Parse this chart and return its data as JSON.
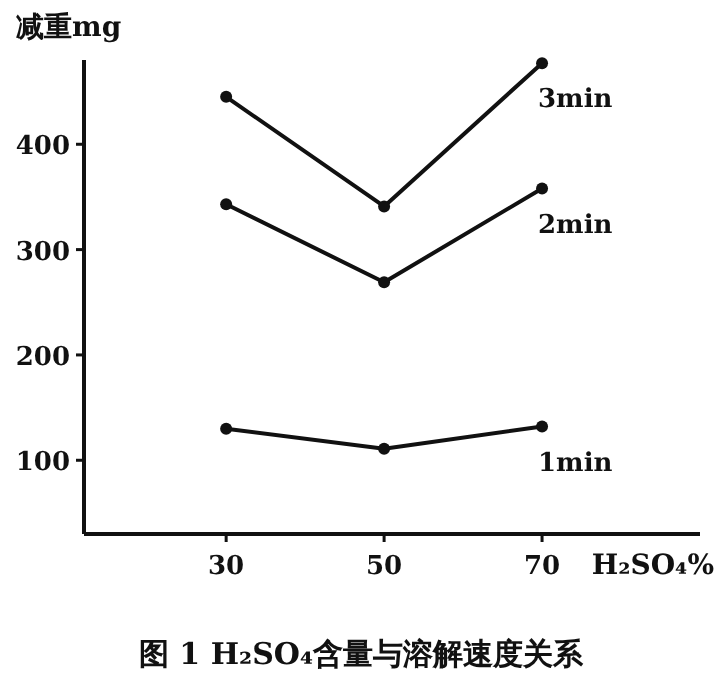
{
  "chart_data": {
    "type": "line",
    "title": "图 1  H₂SO₄含量与溶解速度关系",
    "xlabel": "H₂SO₄%",
    "ylabel": "减重mg",
    "x": [
      30,
      50,
      70
    ],
    "series": [
      {
        "name": "3min",
        "color": "#111111",
        "values": [
          445,
          341,
          477
        ]
      },
      {
        "name": "2min",
        "color": "#111111",
        "values": [
          343,
          269,
          358
        ]
      },
      {
        "name": "1min",
        "color": "#111111",
        "values": [
          130,
          111,
          132
        ]
      }
    ],
    "xlim": [
      12,
      90
    ],
    "ylim": [
      30,
      480
    ],
    "xticks": [
      30,
      50,
      70
    ],
    "yticks": [
      100,
      200,
      300,
      400
    ],
    "marker": "circle",
    "line_style": "solid",
    "grid": false,
    "legend": false
  }
}
